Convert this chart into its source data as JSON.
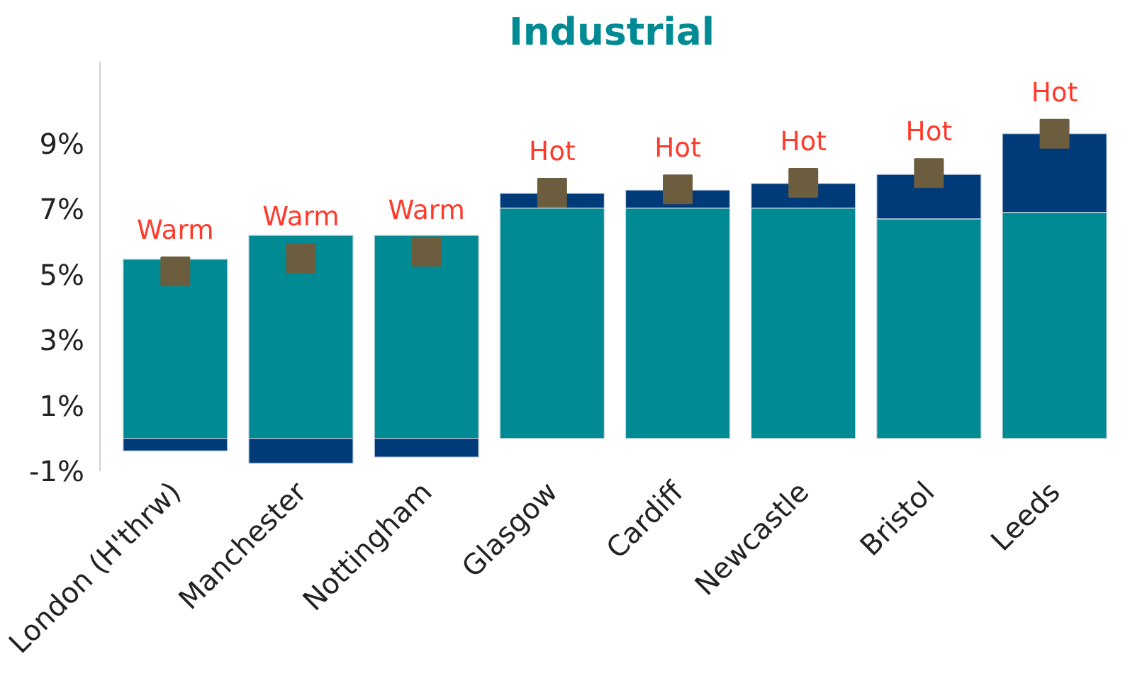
{
  "chart_data": {
    "type": "bar",
    "title": "Industrial",
    "stacked": true,
    "categories": [
      "London (H'thrw)",
      "Manchester",
      "Nottingham",
      "Glasgow",
      "Cardiff",
      "Newcastle",
      "Bristol",
      "Leeds"
    ],
    "series": [
      {
        "color": "#008b94",
        "values": [
          5.47,
          6.2,
          6.2,
          7.03,
          7.03,
          7.03,
          6.7,
          6.9
        ]
      },
      {
        "color": "#003a78",
        "values": [
          -0.38,
          -0.76,
          -0.57,
          0.45,
          0.55,
          0.75,
          1.36,
          2.4
        ]
      },
      {
        "type": "scatter",
        "marker": "square",
        "color": "#6b5d3e",
        "x": [
          "London (H'thrw)",
          "Manchester",
          "Nottingham",
          "Glasgow",
          "Cardiff",
          "Newcastle",
          "Bristol",
          "Leeds"
        ],
        "values": [
          5.1,
          5.5,
          5.7,
          7.5,
          7.6,
          7.8,
          8.1,
          9.3
        ],
        "value_labels": [
          "Warm",
          "Warm",
          "Warm",
          "Hot",
          "Hot",
          "Hot",
          "Hot",
          "Hot"
        ]
      }
    ],
    "ylim": [
      -1,
      11.5
    ],
    "yticks": [
      {
        "value": -1,
        "label": "-1%"
      },
      {
        "value": 1,
        "label": "1%"
      },
      {
        "value": 3,
        "label": "3%"
      },
      {
        "value": 5,
        "label": "5%"
      },
      {
        "value": 7,
        "label": "7%"
      },
      {
        "value": 9,
        "label": "9%"
      }
    ],
    "grid": false
  }
}
